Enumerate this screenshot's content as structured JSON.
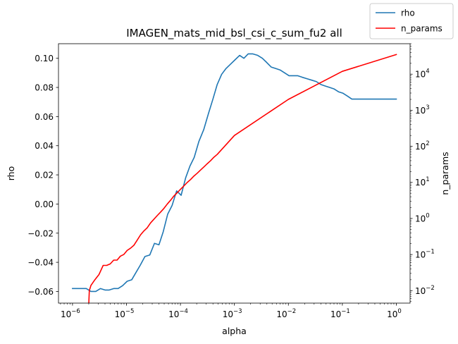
{
  "chart_data": {
    "type": "line",
    "title": "IMAGEN_mats_mid_bsl_csi_c_sum_fu2 all",
    "xlabel": "alpha",
    "ylabel": "rho",
    "y2label": "n_params",
    "xscale": "log",
    "y2scale": "log",
    "xlim": [
      5.5e-07,
      1.8
    ],
    "ylim": [
      -0.068,
      0.11
    ],
    "y2lim": [
      0.0045,
      70000
    ],
    "xticks": [
      1e-06,
      1e-05,
      0.0001,
      0.001,
      0.01,
      0.1,
      1
    ],
    "xtick_bases": [
      "10",
      "10",
      "10",
      "10",
      "10",
      "10",
      "10"
    ],
    "xtick_exps": [
      "−6",
      "−5",
      "−4",
      "−3",
      "−2",
      "−1",
      "0"
    ],
    "yticks": [
      -0.06,
      -0.04,
      -0.02,
      0.0,
      0.02,
      0.04,
      0.06,
      0.08,
      0.1
    ],
    "ytick_labels": [
      "−0.06",
      "−0.04",
      "−0.02",
      "0.00",
      "0.02",
      "0.04",
      "0.06",
      "0.08",
      "0.10"
    ],
    "y2ticks": [
      0.01,
      0.1,
      1,
      10,
      100,
      1000,
      10000
    ],
    "y2tick_bases": [
      "10",
      "10",
      "10",
      "10",
      "10",
      "10",
      "10"
    ],
    "y2tick_exps": [
      "−2",
      "−1",
      "0",
      "1",
      "2",
      "3",
      "4"
    ],
    "legend_position": "top-right",
    "series": [
      {
        "name": "rho",
        "color": "#1f77b4",
        "axis": "left",
        "x": [
          1e-06,
          1.5e-06,
          1.8e-06,
          2.2e-06,
          2.7e-06,
          3.3e-06,
          4e-06,
          4.8e-06,
          5.8e-06,
          7e-06,
          8.5e-06,
          1.03e-05,
          1.25e-05,
          1.5e-05,
          1.8e-05,
          2.2e-05,
          2.7e-05,
          3.3e-05,
          4e-05,
          4.8e-05,
          5.8e-05,
          7e-05,
          8.5e-05,
          0.000103,
          0.000125,
          0.00015,
          0.00018,
          0.00022,
          0.00027,
          0.00033,
          0.0004,
          0.00048,
          0.00058,
          0.0007,
          0.00085,
          0.00103,
          0.00125,
          0.0015,
          0.0018,
          0.0022,
          0.0027,
          0.0033,
          0.004,
          0.0048,
          0.0058,
          0.007,
          0.0085,
          0.0103,
          0.0125,
          0.015,
          0.018,
          0.022,
          0.027,
          0.033,
          0.04,
          0.048,
          0.058,
          0.07,
          0.085,
          0.103,
          0.125,
          0.15,
          0.18,
          0.22,
          0.27,
          0.33,
          0.4,
          0.48,
          0.58,
          0.7,
          0.85,
          1.0
        ],
        "y": [
          -0.058,
          -0.058,
          -0.058,
          -0.06,
          -0.06,
          -0.058,
          -0.059,
          -0.059,
          -0.058,
          -0.058,
          -0.056,
          -0.053,
          -0.052,
          -0.047,
          -0.042,
          -0.036,
          -0.035,
          -0.027,
          -0.028,
          -0.019,
          -0.007,
          -0.001,
          0.009,
          0.006,
          0.018,
          0.026,
          0.032,
          0.043,
          0.051,
          0.062,
          0.072,
          0.082,
          0.089,
          0.093,
          0.096,
          0.099,
          0.102,
          0.1,
          0.103,
          0.103,
          0.102,
          0.1,
          0.097,
          0.094,
          0.093,
          0.092,
          0.09,
          0.088,
          0.088,
          0.088,
          0.087,
          0.086,
          0.085,
          0.084,
          0.082,
          0.081,
          0.08,
          0.079,
          0.077,
          0.076,
          0.074,
          0.072,
          0.072,
          0.072,
          0.072,
          0.072,
          0.072,
          0.072,
          0.072,
          0.072,
          0.072,
          0.072
        ]
      },
      {
        "name": "n_params",
        "color": "#ff0000",
        "axis": "right",
        "x": [
          2e-06,
          2.05e-06,
          2.2e-06,
          2.6e-06,
          3.1e-06,
          3.7e-06,
          4.3e-06,
          5e-06,
          5.8e-06,
          6.7e-06,
          7.7e-06,
          8.9e-06,
          1.03e-05,
          1.19e-05,
          1.37e-05,
          1.58e-05,
          1.82e-05,
          2.1e-05,
          2.42e-05,
          2.79e-05,
          3.22e-05,
          3.71e-05,
          4.28e-05,
          4.94e-05,
          5.69e-05,
          6.56e-05,
          7.57e-05,
          8.73e-05,
          0.000101,
          0.000116,
          0.000134,
          0.000154,
          0.000178,
          0.000205,
          0.000236,
          0.000273,
          0.000314,
          0.000362,
          0.000418,
          0.000482,
          0.001,
          0.01,
          0.1,
          1.0
        ],
        "y": [
          0.004,
          0.01,
          0.014,
          0.02,
          0.028,
          0.05,
          0.05,
          0.055,
          0.07,
          0.07,
          0.09,
          0.1,
          0.13,
          0.15,
          0.18,
          0.25,
          0.35,
          0.45,
          0.55,
          0.75,
          0.95,
          1.2,
          1.5,
          1.9,
          2.5,
          3.2,
          4.2,
          5.2,
          6.5,
          8,
          10,
          12,
          15,
          18,
          22,
          27,
          33,
          40,
          50,
          60,
          200,
          2000,
          12000,
          35000
        ]
      }
    ]
  }
}
